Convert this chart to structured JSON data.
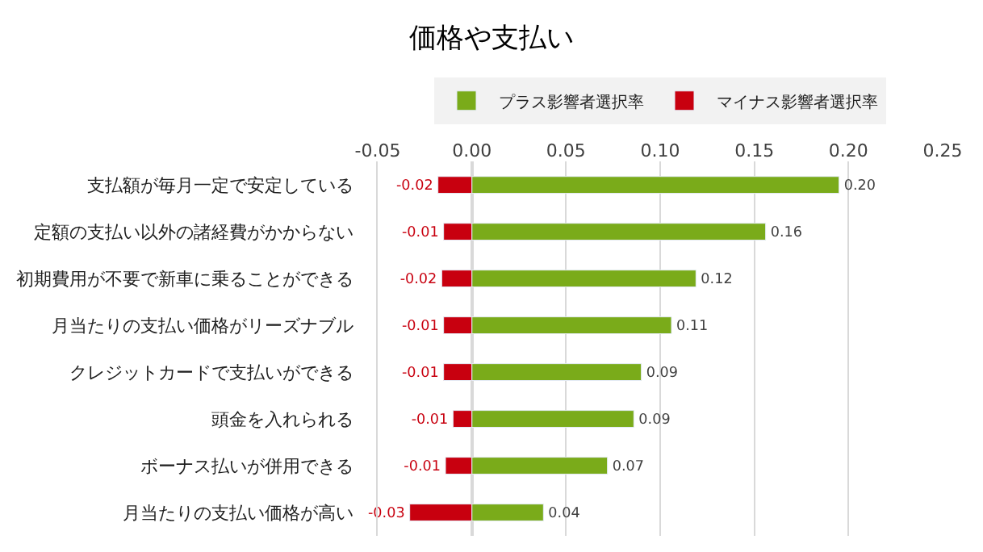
{
  "chart_data": {
    "type": "bar",
    "orientation": "horizontal",
    "title": "価格や支払い",
    "categories": [
      "支払額が毎月一定で安定している",
      "定額の支払い以外の諸経費がかからない",
      "初期費用が不要で新車に乗ることができる",
      "月当たりの支払い価格がリーズナブル",
      "クレジットカードで支払いができる",
      "頭金を入れられる",
      "ボーナス払いが併用できる",
      "月当たりの支払い価格が高い"
    ],
    "series": [
      {
        "name": "プラス影響者選択率",
        "color": "#7aab1a",
        "values": [
          0.195,
          0.156,
          0.119,
          0.106,
          0.09,
          0.086,
          0.072,
          0.038
        ],
        "value_labels": [
          "0.20",
          "0.16",
          "0.12",
          "0.11",
          "0.09",
          "0.09",
          "0.07",
          "0.04"
        ]
      },
      {
        "name": "マイナス影響者選択率",
        "color": "#c8000f",
        "values": [
          -0.018,
          -0.015,
          -0.016,
          -0.015,
          -0.015,
          -0.01,
          -0.014,
          -0.033
        ],
        "value_labels": [
          "-0.02",
          "-0.01",
          "-0.02",
          "-0.01",
          "-0.01",
          "-0.01",
          "-0.01",
          "-0.03"
        ]
      }
    ],
    "xlim": [
      -0.05,
      0.25
    ],
    "xticks": [
      {
        "value": -0.05,
        "label": "-0.05"
      },
      {
        "value": 0,
        "label": "0.00"
      },
      {
        "value": 0.05,
        "label": "0.05"
      },
      {
        "value": 0.1,
        "label": "0.10"
      },
      {
        "value": 0.15,
        "label": "0.15"
      },
      {
        "value": 0.2,
        "label": "0.20"
      },
      {
        "value": 0.25,
        "label": "0.25"
      }
    ],
    "grid": "x",
    "legend": "top",
    "stacked": true
  }
}
